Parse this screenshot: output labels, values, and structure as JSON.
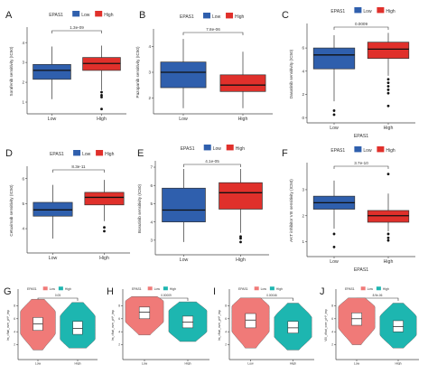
{
  "legend_title": "EPAS1",
  "legend_low": "Low",
  "legend_high": "High",
  "colors": {
    "low_box": "#2f5fad",
    "high_box": "#e0302b",
    "violin_low": "#f07a78",
    "violin_high": "#1db6b0",
    "text": "#333333"
  },
  "chart_data": [
    {
      "type": "boxplot",
      "label": "A",
      "title": "",
      "xlabel": "",
      "ylabel": "Sorafenib sensitivity (IC50)",
      "categories": [
        "Low",
        "High"
      ],
      "ylim": [
        0.5,
        4.6
      ],
      "yticks": [
        1,
        2,
        3,
        4
      ],
      "pvalue": "1.3e-09",
      "series": [
        {
          "name": "Low",
          "q1": 2.15,
          "median": 2.6,
          "q3": 2.9,
          "whisker_low": 1.15,
          "whisker_high": 3.8,
          "outliers": []
        },
        {
          "name": "High",
          "q1": 2.6,
          "median": 2.95,
          "q3": 3.25,
          "whisker_low": 1.6,
          "whisker_high": 3.85,
          "outliers": [
            1.5,
            1.35,
            1.25,
            0.65
          ]
        }
      ]
    },
    {
      "type": "boxplot",
      "label": "B",
      "title": "",
      "xlabel": "",
      "ylabel": "Pazopanib sensitivity (IC50)",
      "categories": [
        "Low",
        "High"
      ],
      "ylim": [
        1.45,
        4.55
      ],
      "yticks": [
        2,
        3,
        4
      ],
      "pvalue": "7.8e-06",
      "series": [
        {
          "name": "Low",
          "q1": 2.4,
          "median": 3.0,
          "q3": 3.4,
          "whisker_low": 1.6,
          "whisker_high": 4.3,
          "outliers": []
        },
        {
          "name": "High",
          "q1": 2.25,
          "median": 2.5,
          "q3": 2.9,
          "whisker_low": 1.6,
          "whisker_high": 3.8,
          "outliers": []
        }
      ]
    },
    {
      "type": "boxplot",
      "label": "C",
      "title": "",
      "xlabel": "EPAS1",
      "ylabel": "Dasatinib sensitivity (IC50)",
      "categories": [
        "Low",
        "High"
      ],
      "ylim": [
        -0.3,
        7.8
      ],
      "yticks": [
        0,
        2,
        4,
        6
      ],
      "pvalue": "0.0009",
      "series": [
        {
          "name": "Low",
          "q1": 4.2,
          "median": 5.4,
          "q3": 6.0,
          "whisker_low": 1.4,
          "whisker_high": 7.1,
          "outliers": [
            0.6,
            0.25
          ]
        },
        {
          "name": "High",
          "q1": 5.1,
          "median": 5.9,
          "q3": 6.5,
          "whisker_low": 3.6,
          "whisker_high": 7.3,
          "outliers": [
            3.3,
            3.0,
            2.7,
            2.4,
            2.1,
            1.0
          ]
        }
      ]
    },
    {
      "type": "boxplot",
      "label": "D",
      "title": "",
      "xlabel": "",
      "ylabel": "Cetuximab sensitivity (IC50)",
      "categories": [
        "Low",
        "High"
      ],
      "ylim": [
        3.1,
        6.35
      ],
      "yticks": [
        4,
        5,
        6
      ],
      "pvalue": "8.3e-11",
      "series": [
        {
          "name": "Low",
          "q1": 4.5,
          "median": 4.75,
          "q3": 5.05,
          "whisker_low": 3.6,
          "whisker_high": 5.75,
          "outliers": []
        },
        {
          "name": "High",
          "q1": 4.95,
          "median": 5.25,
          "q3": 5.45,
          "whisker_low": 4.3,
          "whisker_high": 5.95,
          "outliers": [
            4.05,
            3.9
          ]
        }
      ]
    },
    {
      "type": "boxplot",
      "label": "E",
      "title": "",
      "xlabel": "",
      "ylabel": "Bosutinib sensitivity (IC50)",
      "categories": [
        "Low",
        "High"
      ],
      "ylim": [
        2.3,
        7.15
      ],
      "yticks": [
        3,
        4,
        5,
        6,
        7
      ],
      "pvalue": "4.1e-05",
      "series": [
        {
          "name": "Low",
          "q1": 4.0,
          "median": 4.65,
          "q3": 5.85,
          "whisker_low": 2.9,
          "whisker_high": 6.9,
          "outliers": []
        },
        {
          "name": "High",
          "q1": 4.7,
          "median": 5.6,
          "q3": 6.15,
          "whisker_low": 3.4,
          "whisker_high": 6.9,
          "outliers": [
            3.2,
            3.1,
            2.9
          ]
        }
      ]
    },
    {
      "type": "boxplot",
      "label": "F",
      "title": "",
      "xlabel": "EPAS1",
      "ylabel": "AKT inhibitor VIII sensitivity (IC50)",
      "categories": [
        "Low",
        "High"
      ],
      "ylim": [
        0.5,
        3.9
      ],
      "yticks": [
        1,
        2,
        3
      ],
      "pvalue": "3.7e-10",
      "series": [
        {
          "name": "Low",
          "q1": 2.25,
          "median": 2.5,
          "q3": 2.75,
          "whisker_low": 1.5,
          "whisker_high": 3.35,
          "outliers": [
            1.3,
            0.8
          ]
        },
        {
          "name": "High",
          "q1": 1.75,
          "median": 2.0,
          "q3": 2.2,
          "whisker_low": 1.4,
          "whisker_high": 2.85,
          "outliers": [
            3.6,
            1.3,
            1.15,
            1.05
          ]
        }
      ]
    },
    {
      "type": "violin",
      "label": "G",
      "title": "",
      "xlabel": "",
      "ylabel": "Im_cfhat_over_pH*_imp",
      "categories": [
        "Low",
        "High"
      ],
      "ylim": [
        0,
        10
      ],
      "yticks": [
        2,
        4,
        6,
        8
      ],
      "pvalue": "0.05",
      "series": [
        {
          "name": "Low",
          "q1": 4.2,
          "median": 5.2,
          "q3": 6.2,
          "lo": 1.2,
          "hi": 9.0
        },
        {
          "name": "High",
          "q1": 3.6,
          "median": 4.5,
          "q3": 5.6,
          "lo": 1.5,
          "hi": 8.5
        }
      ]
    },
    {
      "type": "violin",
      "label": "H",
      "title": "",
      "xlabel": "",
      "ylabel": "Im_cfhat_over_pH*_imp",
      "categories": [
        "Low",
        "High"
      ],
      "ylim": [
        0,
        10
      ],
      "yticks": [
        2,
        4,
        6,
        8
      ],
      "pvalue": "0.00009",
      "series": [
        {
          "name": "Low",
          "q1": 6.0,
          "median": 7.0,
          "q3": 7.8,
          "lo": 3.5,
          "hi": 9.4
        },
        {
          "name": "High",
          "q1": 4.6,
          "median": 5.5,
          "q3": 6.4,
          "lo": 2.5,
          "hi": 8.6
        }
      ]
    },
    {
      "type": "violin",
      "label": "I",
      "title": "",
      "xlabel": "",
      "ylabel": "Im_cfhat_over_pH*_imp",
      "categories": [
        "Low",
        "High"
      ],
      "ylim": [
        0,
        10
      ],
      "yticks": [
        2,
        4,
        6,
        8
      ],
      "pvalue": "0.00046",
      "series": [
        {
          "name": "Low",
          "q1": 4.6,
          "median": 5.8,
          "q3": 6.8,
          "lo": 1.5,
          "hi": 9.2
        },
        {
          "name": "High",
          "q1": 3.8,
          "median": 4.6,
          "q3": 5.6,
          "lo": 1.2,
          "hi": 8.4
        }
      ]
    },
    {
      "type": "violin",
      "label": "J",
      "title": "",
      "xlabel": "",
      "ylabel": "VIII_cfhat_over_pH*_imp",
      "categories": [
        "Low",
        "High"
      ],
      "ylim": [
        0,
        10
      ],
      "yticks": [
        2,
        4,
        6,
        8
      ],
      "pvalue": "8.9e-06",
      "series": [
        {
          "name": "Low",
          "q1": 5.0,
          "median": 6.0,
          "q3": 6.9,
          "lo": 2.0,
          "hi": 9.2
        },
        {
          "name": "High",
          "q1": 4.0,
          "median": 4.8,
          "q3": 5.7,
          "lo": 1.5,
          "hi": 8.4
        }
      ]
    }
  ]
}
